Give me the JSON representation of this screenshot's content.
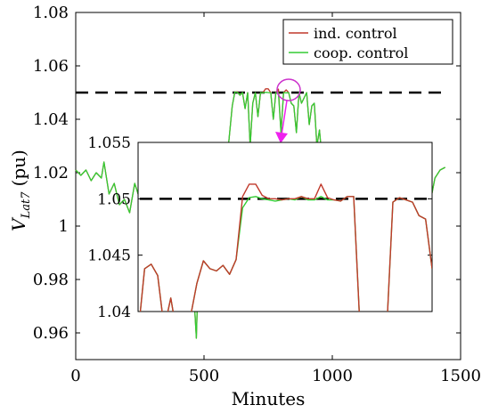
{
  "chart_data": {
    "type": "line",
    "xlabel": "Minutes",
    "ylabel_main": "V",
    "ylabel_sub": "Lat7",
    "ylabel_unit": "(pu)",
    "xlim": [
      0,
      1500
    ],
    "ylim": [
      0.95,
      1.08
    ],
    "xticks": [
      "0",
      "500",
      "1000",
      "1500"
    ],
    "yticks": [
      "0.96",
      "0.98",
      "1",
      "1.02",
      "1.04",
      "1.06",
      "1.08"
    ],
    "reference_line": 1.05,
    "legend_position": "top-right",
    "colors": {
      "ind": "#c0392b",
      "coop": "#33cc33",
      "reference": "#000000",
      "marker": "#cc33cc",
      "arrow": "#ee22ee"
    },
    "series": [
      {
        "name": "ind. control",
        "x": [
          0,
          20,
          40,
          60,
          80,
          100,
          110,
          130,
          150,
          170,
          190,
          210,
          230,
          250,
          270,
          290,
          310,
          330,
          350,
          370,
          390,
          410,
          430,
          450,
          470,
          490,
          510,
          530,
          550,
          570,
          590,
          610,
          620,
          630,
          640,
          650,
          660,
          670,
          680,
          690,
          700,
          710,
          720,
          730,
          740,
          750,
          760,
          770,
          780,
          790,
          800,
          810,
          820,
          830,
          840,
          850,
          860,
          870,
          880,
          890,
          900,
          910,
          920,
          930,
          940,
          950,
          960,
          980,
          1000,
          1020,
          1040,
          1060,
          1080,
          1100,
          1120,
          1140,
          1160,
          1180,
          1200,
          1220,
          1240,
          1260,
          1280,
          1300,
          1320,
          1340,
          1360,
          1380,
          1400,
          1420,
          1440
        ],
        "y": [
          1.021,
          1.019,
          1.021,
          1.017,
          1.02,
          1.018,
          1.024,
          1.012,
          1.016,
          1.008,
          1.01,
          1.005,
          1.016,
          1.01,
          1.021,
          1.006,
          1.018,
          1.02,
          1.015,
          1.027,
          1.006,
          1.018,
          1.022,
          0.992,
          0.958,
          1.025,
          1.017,
          1.028,
          1.02,
          1.031,
          1.025,
          1.045,
          1.0502,
          1.0503,
          1.049,
          1.05,
          1.044,
          1.05,
          1.03,
          1.046,
          1.05,
          1.041,
          1.05,
          1.05,
          1.0514,
          1.0514,
          1.05,
          1.04,
          1.05,
          1.0513,
          1.035,
          1.05,
          1.051,
          1.05,
          1.046,
          1.045,
          1.035,
          1.05,
          1.046,
          1.048,
          1.05,
          1.038,
          1.045,
          1.046,
          1.03,
          1.036,
          1.025,
          1.015,
          1.028,
          1.018,
          1.012,
          1.022,
          1.009,
          1.015,
          1.02,
          1.006,
          1.018,
          1.014,
          1.021,
          1.008,
          1.016,
          1.019,
          1.006,
          1.013,
          1.018,
          1.012,
          1.0,
          1.008,
          1.018,
          1.021,
          1.022
        ]
      },
      {
        "name": "coop. control",
        "x": [
          0,
          20,
          40,
          60,
          80,
          100,
          110,
          130,
          150,
          170,
          190,
          210,
          230,
          250,
          270,
          290,
          310,
          330,
          350,
          370,
          390,
          410,
          430,
          450,
          470,
          490,
          510,
          530,
          550,
          570,
          590,
          610,
          620,
          630,
          640,
          650,
          660,
          670,
          680,
          690,
          700,
          710,
          720,
          730,
          740,
          750,
          760,
          770,
          780,
          790,
          800,
          810,
          820,
          830,
          840,
          850,
          860,
          870,
          880,
          890,
          900,
          910,
          920,
          930,
          940,
          950,
          960,
          980,
          1000,
          1020,
          1040,
          1060,
          1080,
          1100,
          1120,
          1140,
          1160,
          1180,
          1200,
          1220,
          1240,
          1260,
          1280,
          1300,
          1320,
          1340,
          1360,
          1380,
          1400,
          1420,
          1440
        ],
        "y": [
          1.021,
          1.019,
          1.021,
          1.017,
          1.02,
          1.018,
          1.024,
          1.012,
          1.016,
          1.008,
          1.01,
          1.005,
          1.016,
          1.01,
          1.021,
          1.006,
          1.018,
          1.02,
          1.015,
          1.027,
          1.006,
          1.018,
          1.022,
          0.992,
          0.958,
          1.025,
          1.017,
          1.028,
          1.02,
          1.031,
          1.025,
          1.045,
          1.0502,
          1.0501,
          1.049,
          1.05,
          1.044,
          1.05,
          1.03,
          1.046,
          1.05,
          1.041,
          1.05,
          1.0499,
          1.0501,
          1.05,
          1.0499,
          1.04,
          1.05,
          1.05,
          1.035,
          1.05,
          1.0499,
          1.05,
          1.046,
          1.045,
          1.035,
          1.05,
          1.046,
          1.048,
          1.05,
          1.038,
          1.045,
          1.046,
          1.03,
          1.036,
          1.025,
          1.015,
          1.028,
          1.018,
          1.012,
          1.022,
          1.009,
          1.015,
          1.02,
          1.006,
          1.018,
          1.014,
          1.021,
          1.008,
          1.016,
          1.019,
          1.006,
          1.013,
          1.018,
          1.012,
          1.0,
          1.008,
          1.018,
          1.021,
          1.022
        ]
      }
    ],
    "inset": {
      "xlim": [
        560,
        1010
      ],
      "ylim": [
        1.04,
        1.055
      ],
      "yticks": [
        "1.04",
        "1.045",
        "1.05",
        "1.055"
      ],
      "reference_line": 1.05,
      "series": [
        {
          "name": "ind. control",
          "x": [
            560,
            570,
            580,
            590,
            600,
            610,
            620,
            630,
            640,
            650,
            660,
            670,
            680,
            690,
            700,
            710,
            720,
            730,
            740,
            750,
            760,
            770,
            780,
            790,
            800,
            810,
            820,
            830,
            840,
            850,
            860,
            870,
            880,
            890,
            900,
            910,
            920,
            930,
            940,
            950,
            960,
            970,
            980,
            990,
            1000,
            1010
          ],
          "y": [
            1.038,
            1.0438,
            1.0442,
            1.0432,
            1.0385,
            1.0412,
            1.0378,
            1.038,
            1.0395,
            1.0425,
            1.0445,
            1.0438,
            1.0436,
            1.0441,
            1.0433,
            1.0446,
            1.0502,
            1.0513,
            1.0513,
            1.0503,
            1.05,
            1.05,
            1.0499,
            1.05,
            1.05,
            1.0502,
            1.05,
            1.05,
            1.0513,
            1.0501,
            1.0499,
            1.0498,
            1.0502,
            1.0502,
            1.0382,
            1.038,
            1.0379,
            1.038,
            1.0378,
            1.0497,
            1.0501,
            1.0499,
            1.0497,
            1.0485,
            1.0482,
            1.0438
          ]
        },
        {
          "name": "coop. control",
          "x": [
            560,
            570,
            580,
            590,
            600,
            610,
            620,
            630,
            640,
            650,
            660,
            670,
            680,
            690,
            700,
            710,
            720,
            730,
            740,
            750,
            760,
            770,
            780,
            790,
            800,
            810,
            820,
            830,
            840,
            850,
            860,
            870,
            880,
            890,
            900,
            910,
            920,
            930,
            940,
            950,
            960,
            970,
            980,
            990,
            1000,
            1010
          ],
          "y": [
            1.038,
            1.0438,
            1.0442,
            1.0432,
            1.0385,
            1.0412,
            1.0378,
            1.038,
            1.0395,
            1.0425,
            1.0445,
            1.0438,
            1.0436,
            1.0441,
            1.0433,
            1.0446,
            1.0492,
            1.0501,
            1.0502,
            1.05,
            1.0499,
            1.0498,
            1.0499,
            1.05,
            1.0499,
            1.0502,
            1.0499,
            1.0499,
            1.0502,
            1.0499,
            1.0499,
            1.0498,
            1.0502,
            1.0502,
            1.0382,
            1.038,
            1.0379,
            1.038,
            1.0378,
            1.0497,
            1.0501,
            1.0499,
            1.0497,
            1.0485,
            1.0482,
            1.0438
          ]
        }
      ]
    }
  }
}
